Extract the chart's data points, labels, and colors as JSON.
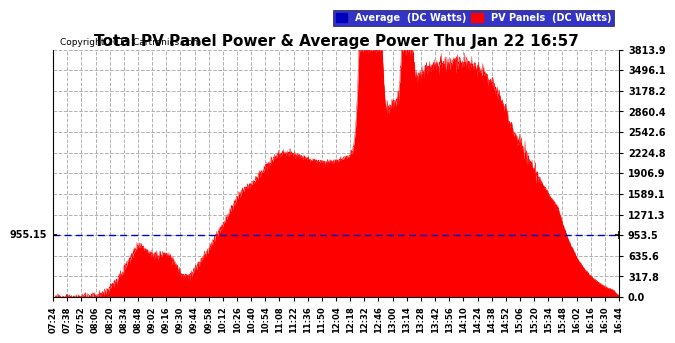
{
  "title": "Total PV Panel Power & Average Power Thu Jan 22 16:57",
  "copyright": "Copyright 2015 Cartronics.com",
  "average_value": 955.15,
  "y_max": 3813.9,
  "y_min": 0.0,
  "y_ticks": [
    0.0,
    317.8,
    635.6,
    953.5,
    1271.3,
    1589.1,
    1906.9,
    2224.8,
    2542.6,
    2860.4,
    3178.2,
    3496.1,
    3813.9
  ],
  "left_y_label": "955.15",
  "legend_avg_color": "#0000bb",
  "legend_pv_color": "#ff0000",
  "bg_color": "#ffffff",
  "grid_color": "#aaaaaa",
  "fill_color": "#ff0000",
  "avg_line_color": "#0000cc",
  "x_labels": [
    "07:24",
    "07:38",
    "07:52",
    "08:06",
    "08:20",
    "08:34",
    "08:48",
    "09:02",
    "09:16",
    "09:30",
    "09:44",
    "09:58",
    "10:12",
    "10:26",
    "10:40",
    "10:54",
    "11:08",
    "11:22",
    "11:36",
    "11:50",
    "12:04",
    "12:18",
    "12:32",
    "12:46",
    "13:00",
    "13:14",
    "13:28",
    "13:42",
    "13:56",
    "14:10",
    "14:24",
    "14:38",
    "14:52",
    "15:06",
    "15:20",
    "15:34",
    "15:48",
    "16:02",
    "16:16",
    "16:30",
    "16:44"
  ]
}
